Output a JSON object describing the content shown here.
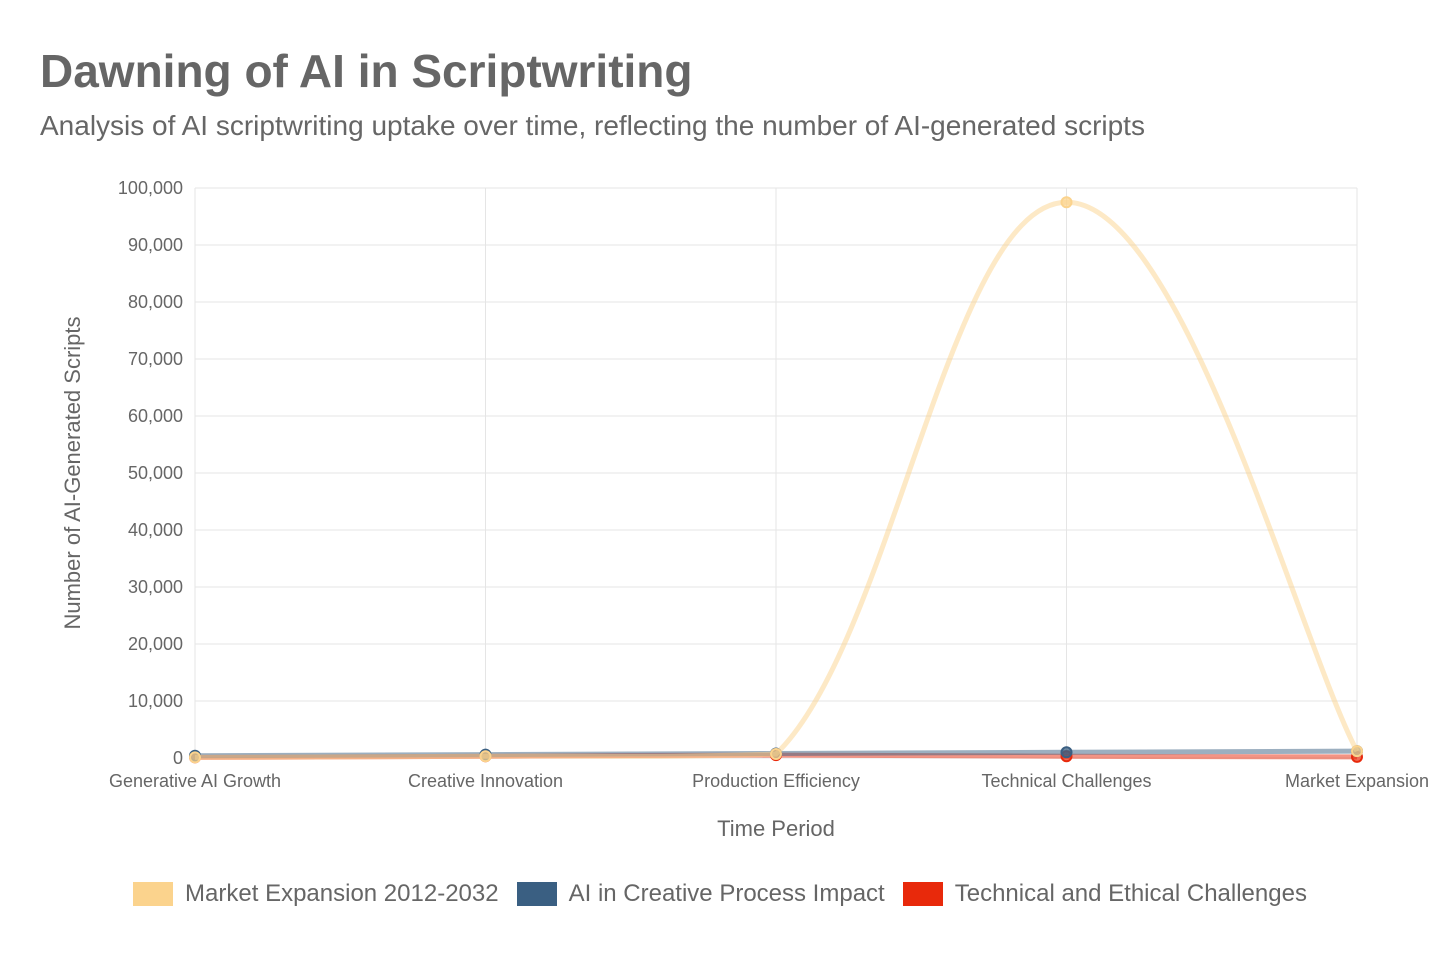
{
  "title": "Dawning of AI in Scriptwriting",
  "subtitle": "Analysis of AI scriptwriting uptake over time, reflecting the number of AI-generated scripts",
  "chart_data": {
    "type": "line",
    "title": "Dawning of AI in Scriptwriting",
    "subtitle": "Analysis of AI scriptwriting uptake over time, reflecting the number of AI-generated scripts",
    "xlabel": "Time Period",
    "ylabel": "Number of AI-Generated Scripts",
    "categories": [
      "Generative AI Growth",
      "Creative Innovation",
      "Production Efficiency",
      "Technical Challenges",
      "Market Expansion"
    ],
    "ylim": [
      0,
      100000
    ],
    "yticks": [
      0,
      10000,
      20000,
      30000,
      40000,
      50000,
      60000,
      70000,
      80000,
      90000,
      100000
    ],
    "ytick_labels": [
      "0",
      "10,000",
      "20,000",
      "30,000",
      "40,000",
      "50,000",
      "60,000",
      "70,000",
      "80,000",
      "90,000",
      "100,000"
    ],
    "grid": true,
    "legend_position": "bottom",
    "series": [
      {
        "name": "Market Expansion 2012-2032",
        "color": "#fbd38d",
        "values": [
          100,
          300,
          700,
          97500,
          1200
        ]
      },
      {
        "name": "AI in Creative Process Impact",
        "color": "#3a5f82",
        "values": [
          400,
          600,
          800,
          1000,
          1200
        ]
      },
      {
        "name": "Technical and Ethical Challenges",
        "color": "#e8290b",
        "values": [
          100,
          300,
          500,
          300,
          200
        ]
      }
    ]
  }
}
